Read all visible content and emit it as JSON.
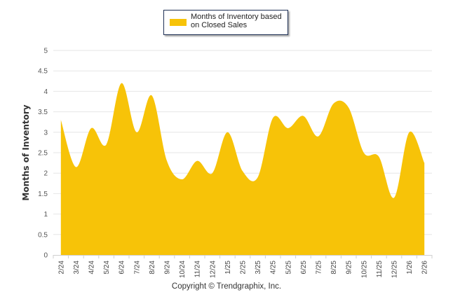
{
  "legend": {
    "label": "Months of Inventory based on Closed Sales"
  },
  "copyright": "Copyright © Trendgraphix, Inc.",
  "colors": {
    "series": "#f7c308",
    "grid": "#e6e6e6",
    "axis": "#cfcfcf"
  },
  "chart_data": {
    "type": "area",
    "title": "",
    "xlabel": "",
    "ylabel": "Months of Inventory",
    "ylim": [
      0,
      5
    ],
    "yticks": [
      "0",
      "0.5",
      "1",
      "1.5",
      "2",
      "2.5",
      "3",
      "3.5",
      "4",
      "4.5",
      "5"
    ],
    "grid": true,
    "legend_position": "top-center",
    "categories": [
      "2/24",
      "3/24",
      "4/24",
      "5/24",
      "6/24",
      "7/24",
      "8/24",
      "9/24",
      "10/24",
      "11/24",
      "12/24",
      "1/25",
      "2/25",
      "3/25",
      "4/25",
      "5/25",
      "6/25",
      "7/25",
      "8/25",
      "9/25",
      "10/25",
      "11/25",
      "12/25",
      "1/26",
      "2/26"
    ],
    "series": [
      {
        "name": "Months of Inventory based on Closed Sales",
        "values": [
          3.3,
          2.15,
          3.1,
          2.7,
          4.2,
          3.0,
          3.9,
          2.3,
          1.85,
          2.3,
          2.0,
          3.0,
          2.05,
          1.9,
          3.35,
          3.1,
          3.4,
          2.9,
          3.7,
          3.6,
          2.5,
          2.4,
          1.4,
          3.0,
          2.25
        ]
      }
    ]
  }
}
